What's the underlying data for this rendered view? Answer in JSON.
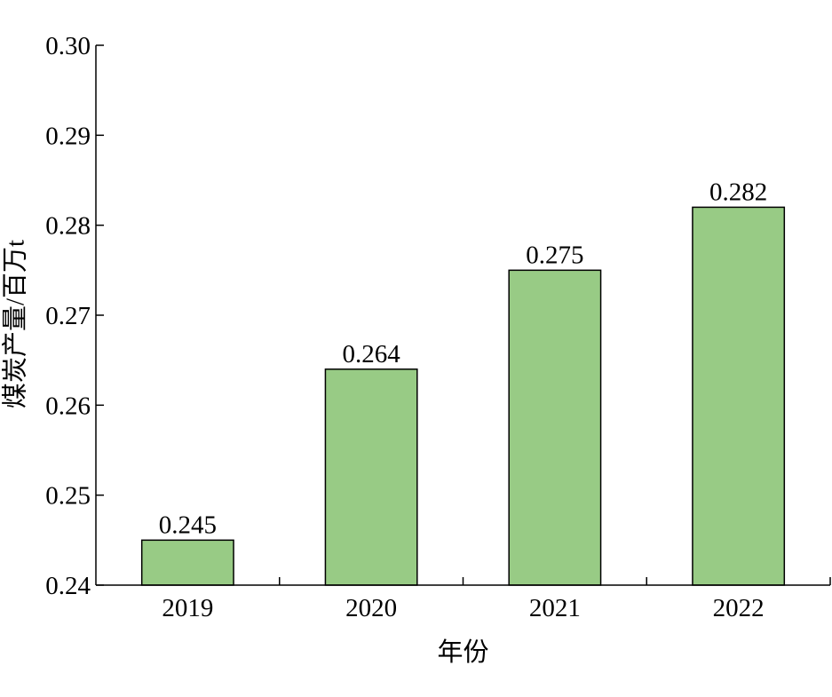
{
  "chart_data": {
    "type": "bar",
    "title": "",
    "xlabel": "年份",
    "ylabel": "煤炭产量/百万t",
    "categories": [
      "2019",
      "2020",
      "2021",
      "2022"
    ],
    "values": [
      0.245,
      0.264,
      0.275,
      0.282
    ],
    "data_labels": [
      "0.245",
      "0.264",
      "0.275",
      "0.282"
    ],
    "ylim": [
      0.24,
      0.3
    ],
    "yticks": [
      0.24,
      0.25,
      0.26,
      0.27,
      0.28,
      0.29,
      0.3
    ],
    "ytick_labels": [
      "0.24",
      "0.25",
      "0.26",
      "0.27",
      "0.28",
      "0.29",
      "0.30"
    ],
    "grid": false,
    "legend": "none",
    "bar_color": "#98cb85",
    "bar_edge_color": "#000000"
  }
}
